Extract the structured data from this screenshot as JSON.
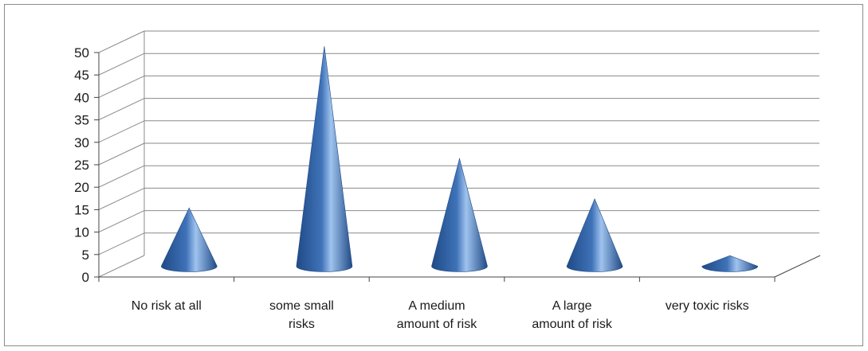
{
  "chart_data": {
    "type": "bar",
    "shape": "3d-cone",
    "categories": [
      [
        "No risk at all"
      ],
      [
        "some small",
        "risks"
      ],
      [
        "A medium",
        "amount of risk"
      ],
      [
        "A large",
        "amount of risk"
      ],
      [
        "very toxic risks"
      ]
    ],
    "values": [
      13,
      49,
      24,
      15,
      2
    ],
    "ylim": [
      0,
      50
    ],
    "yticks": [
      0,
      5,
      10,
      15,
      20,
      25,
      30,
      35,
      40,
      45,
      50
    ],
    "grid": true,
    "legend": "none",
    "colors": {
      "cone": "#3f72b8",
      "cone_light": "#9fc3ee",
      "cone_dark": "#1f4a86",
      "grid": "#8a8a8a"
    }
  }
}
